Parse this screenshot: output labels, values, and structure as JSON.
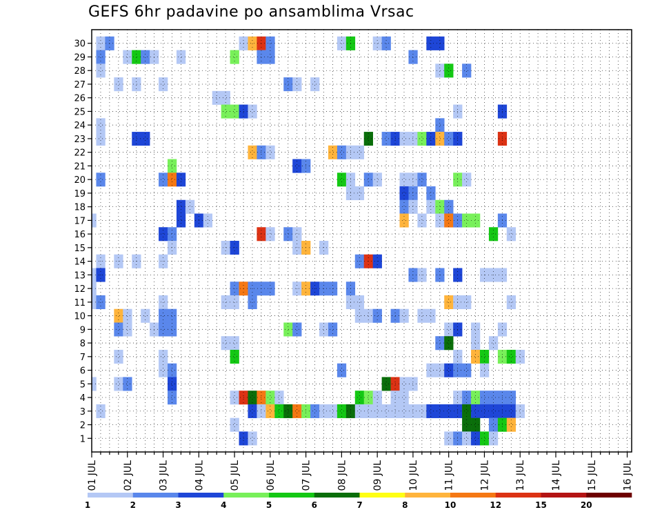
{
  "chart_data": {
    "type": "heatmap",
    "title": "GEFS 6hr padavine po ansamblima Vrsac",
    "x_labels": [
      "01 JUL",
      "02 JUL",
      "03 JUL",
      "04 JUL",
      "05 JUL",
      "06 JUL",
      "07 JUL",
      "08 JUL",
      "09 JUL",
      "10 JUL",
      "11 JUL",
      "12 JUL",
      "13 JUL",
      "14 JUL",
      "15 JUL",
      "16 JUL"
    ],
    "x_unit": "6-hourly forecast step (4 per day)",
    "y_labels": [
      1,
      2,
      3,
      4,
      5,
      6,
      7,
      8,
      9,
      10,
      11,
      12,
      13,
      14,
      15,
      16,
      17,
      18,
      19,
      20,
      21,
      22,
      23,
      24,
      25,
      26,
      27,
      28,
      29,
      30
    ],
    "y_unit": "ensemble member",
    "grid": true,
    "legend_position": "bottom",
    "legend": {
      "levels": [
        1,
        2,
        3,
        4,
        5,
        6,
        7,
        8,
        10,
        12,
        15,
        20
      ],
      "colors": [
        "#b4c8f5",
        "#5a87eb",
        "#1e46d7",
        "#78f05a",
        "#14c814",
        "#0a6e0a",
        "#ffff14",
        "#ffb43c",
        "#f57814",
        "#dc3214",
        "#b41414",
        "#6e0000"
      ]
    },
    "cells": [
      [
        1,
        30,
        1
      ],
      [
        2,
        30,
        2
      ],
      [
        17,
        30,
        1
      ],
      [
        18,
        30,
        9
      ],
      [
        19,
        30,
        12
      ],
      [
        20,
        30,
        2
      ],
      [
        28,
        30,
        1
      ],
      [
        29,
        30,
        5
      ],
      [
        32,
        30,
        1
      ],
      [
        33,
        30,
        2
      ],
      [
        38,
        30,
        3
      ],
      [
        39,
        30,
        3
      ],
      [
        1,
        29,
        2
      ],
      [
        4,
        29,
        1
      ],
      [
        5,
        29,
        5
      ],
      [
        6,
        29,
        2
      ],
      [
        7,
        29,
        1
      ],
      [
        10,
        29,
        1
      ],
      [
        16,
        29,
        4
      ],
      [
        19,
        29,
        2
      ],
      [
        20,
        29,
        2
      ],
      [
        36,
        29,
        2
      ],
      [
        1,
        28,
        1
      ],
      [
        39,
        28,
        1
      ],
      [
        40,
        28,
        5
      ],
      [
        42,
        28,
        2
      ],
      [
        3,
        27,
        1
      ],
      [
        5,
        27,
        1
      ],
      [
        8,
        27,
        1
      ],
      [
        22,
        27,
        2
      ],
      [
        23,
        27,
        1
      ],
      [
        25,
        27,
        1
      ],
      [
        14,
        26,
        1
      ],
      [
        15,
        26,
        1
      ],
      [
        15,
        25,
        4
      ],
      [
        16,
        25,
        4
      ],
      [
        17,
        25,
        3
      ],
      [
        18,
        25,
        1
      ],
      [
        41,
        25,
        1
      ],
      [
        46,
        25,
        3
      ],
      [
        1,
        24,
        1
      ],
      [
        39,
        24,
        2
      ],
      [
        1,
        23,
        1
      ],
      [
        5,
        23,
        3
      ],
      [
        6,
        23,
        3
      ],
      [
        31,
        23,
        6
      ],
      [
        33,
        23,
        2
      ],
      [
        34,
        23,
        3
      ],
      [
        35,
        23,
        1
      ],
      [
        36,
        23,
        1
      ],
      [
        37,
        23,
        4
      ],
      [
        38,
        23,
        3
      ],
      [
        39,
        23,
        8
      ],
      [
        40,
        23,
        2
      ],
      [
        41,
        23,
        3
      ],
      [
        46,
        23,
        12
      ],
      [
        18,
        22,
        8
      ],
      [
        19,
        22,
        2
      ],
      [
        20,
        22,
        1
      ],
      [
        27,
        22,
        9
      ],
      [
        28,
        22,
        2
      ],
      [
        29,
        22,
        1
      ],
      [
        30,
        22,
        1
      ],
      [
        9,
        21,
        4
      ],
      [
        23,
        21,
        3
      ],
      [
        24,
        21,
        2
      ],
      [
        1,
        20,
        2
      ],
      [
        8,
        20,
        2
      ],
      [
        9,
        20,
        10
      ],
      [
        10,
        20,
        3
      ],
      [
        28,
        20,
        5
      ],
      [
        29,
        20,
        1
      ],
      [
        31,
        20,
        2
      ],
      [
        32,
        20,
        1
      ],
      [
        35,
        20,
        1
      ],
      [
        36,
        20,
        1
      ],
      [
        37,
        20,
        2
      ],
      [
        41,
        20,
        4
      ],
      [
        42,
        20,
        1
      ],
      [
        29,
        19,
        1
      ],
      [
        30,
        19,
        1
      ],
      [
        35,
        19,
        3
      ],
      [
        36,
        19,
        2
      ],
      [
        38,
        19,
        2
      ],
      [
        10,
        18,
        3
      ],
      [
        11,
        18,
        1
      ],
      [
        35,
        18,
        2
      ],
      [
        36,
        18,
        1
      ],
      [
        38,
        18,
        1
      ],
      [
        39,
        18,
        4
      ],
      [
        40,
        18,
        2
      ],
      [
        0,
        17,
        1
      ],
      [
        10,
        17,
        3
      ],
      [
        12,
        17,
        3
      ],
      [
        13,
        17,
        1
      ],
      [
        35,
        17,
        8
      ],
      [
        37,
        17,
        1
      ],
      [
        39,
        17,
        1
      ],
      [
        40,
        17,
        11
      ],
      [
        41,
        17,
        2
      ],
      [
        42,
        17,
        4
      ],
      [
        43,
        17,
        4
      ],
      [
        46,
        17,
        2
      ],
      [
        8,
        16,
        3
      ],
      [
        9,
        16,
        2
      ],
      [
        19,
        16,
        12
      ],
      [
        20,
        16,
        1
      ],
      [
        22,
        16,
        2
      ],
      [
        23,
        16,
        1
      ],
      [
        45,
        16,
        5
      ],
      [
        47,
        16,
        1
      ],
      [
        9,
        15,
        1
      ],
      [
        15,
        15,
        1
      ],
      [
        16,
        15,
        3
      ],
      [
        23,
        15,
        1
      ],
      [
        24,
        15,
        8
      ],
      [
        26,
        15,
        1
      ],
      [
        1,
        14,
        1
      ],
      [
        3,
        14,
        1
      ],
      [
        5,
        14,
        1
      ],
      [
        8,
        14,
        1
      ],
      [
        30,
        14,
        2
      ],
      [
        31,
        14,
        12
      ],
      [
        32,
        14,
        3
      ],
      [
        0,
        13,
        1
      ],
      [
        1,
        13,
        3
      ],
      [
        36,
        13,
        2
      ],
      [
        37,
        13,
        1
      ],
      [
        39,
        13,
        2
      ],
      [
        41,
        13,
        3
      ],
      [
        44,
        13,
        1
      ],
      [
        45,
        13,
        1
      ],
      [
        46,
        13,
        1
      ],
      [
        0,
        12,
        1
      ],
      [
        16,
        12,
        2
      ],
      [
        17,
        12,
        10
      ],
      [
        18,
        12,
        2
      ],
      [
        19,
        12,
        2
      ],
      [
        20,
        12,
        2
      ],
      [
        23,
        12,
        1
      ],
      [
        24,
        12,
        9
      ],
      [
        25,
        12,
        3
      ],
      [
        26,
        12,
        2
      ],
      [
        27,
        12,
        2
      ],
      [
        29,
        12,
        2
      ],
      [
        0,
        11,
        1
      ],
      [
        1,
        11,
        2
      ],
      [
        8,
        11,
        1
      ],
      [
        15,
        11,
        1
      ],
      [
        16,
        11,
        1
      ],
      [
        18,
        11,
        2
      ],
      [
        29,
        11,
        1
      ],
      [
        30,
        11,
        1
      ],
      [
        40,
        11,
        9
      ],
      [
        41,
        11,
        1
      ],
      [
        42,
        11,
        1
      ],
      [
        47,
        11,
        1
      ],
      [
        3,
        10,
        9
      ],
      [
        4,
        10,
        1
      ],
      [
        6,
        10,
        1
      ],
      [
        8,
        10,
        2
      ],
      [
        9,
        10,
        2
      ],
      [
        30,
        10,
        1
      ],
      [
        31,
        10,
        1
      ],
      [
        32,
        10,
        2
      ],
      [
        34,
        10,
        2
      ],
      [
        35,
        10,
        1
      ],
      [
        37,
        10,
        1
      ],
      [
        38,
        10,
        1
      ],
      [
        3,
        9,
        2
      ],
      [
        4,
        9,
        1
      ],
      [
        7,
        9,
        1
      ],
      [
        8,
        9,
        2
      ],
      [
        9,
        9,
        2
      ],
      [
        22,
        9,
        4
      ],
      [
        23,
        9,
        2
      ],
      [
        26,
        9,
        1
      ],
      [
        27,
        9,
        2
      ],
      [
        40,
        9,
        1
      ],
      [
        41,
        9,
        3
      ],
      [
        43,
        9,
        1
      ],
      [
        46,
        9,
        1
      ],
      [
        15,
        8,
        1
      ],
      [
        16,
        8,
        1
      ],
      [
        39,
        8,
        2
      ],
      [
        40,
        8,
        6
      ],
      [
        43,
        8,
        1
      ],
      [
        45,
        8,
        1
      ],
      [
        3,
        7,
        1
      ],
      [
        8,
        7,
        1
      ],
      [
        16,
        7,
        5
      ],
      [
        41,
        7,
        1
      ],
      [
        43,
        7,
        8
      ],
      [
        44,
        7,
        5
      ],
      [
        46,
        7,
        4
      ],
      [
        47,
        7,
        5
      ],
      [
        48,
        7,
        1
      ],
      [
        8,
        6,
        1
      ],
      [
        9,
        6,
        2
      ],
      [
        28,
        6,
        2
      ],
      [
        38,
        6,
        1
      ],
      [
        39,
        6,
        1
      ],
      [
        40,
        6,
        3
      ],
      [
        41,
        6,
        2
      ],
      [
        42,
        6,
        2
      ],
      [
        44,
        6,
        1
      ],
      [
        0,
        5,
        1
      ],
      [
        3,
        5,
        1
      ],
      [
        4,
        5,
        2
      ],
      [
        9,
        5,
        3
      ],
      [
        33,
        5,
        6
      ],
      [
        34,
        5,
        12
      ],
      [
        35,
        5,
        1
      ],
      [
        36,
        5,
        1
      ],
      [
        9,
        4,
        2
      ],
      [
        16,
        4,
        1
      ],
      [
        17,
        4,
        12
      ],
      [
        18,
        4,
        6
      ],
      [
        19,
        4,
        10
      ],
      [
        20,
        4,
        4
      ],
      [
        21,
        4,
        1
      ],
      [
        30,
        4,
        5
      ],
      [
        31,
        4,
        4
      ],
      [
        32,
        4,
        1
      ],
      [
        34,
        4,
        1
      ],
      [
        35,
        4,
        1
      ],
      [
        41,
        4,
        1
      ],
      [
        42,
        4,
        2
      ],
      [
        43,
        4,
        4
      ],
      [
        44,
        4,
        2
      ],
      [
        45,
        4,
        2
      ],
      [
        46,
        4,
        2
      ],
      [
        47,
        4,
        2
      ],
      [
        1,
        3,
        1
      ],
      [
        18,
        3,
        3
      ],
      [
        19,
        3,
        1
      ],
      [
        20,
        3,
        8
      ],
      [
        21,
        3,
        5
      ],
      [
        22,
        3,
        6
      ],
      [
        23,
        3,
        11
      ],
      [
        24,
        3,
        4
      ],
      [
        25,
        3,
        2
      ],
      [
        26,
        3,
        1
      ],
      [
        27,
        3,
        1
      ],
      [
        28,
        3,
        5
      ],
      [
        29,
        3,
        6
      ],
      [
        30,
        3,
        1
      ],
      [
        31,
        3,
        1
      ],
      [
        32,
        3,
        1
      ],
      [
        33,
        3,
        1
      ],
      [
        34,
        3,
        1
      ],
      [
        35,
        3,
        1
      ],
      [
        36,
        3,
        1
      ],
      [
        37,
        3,
        1
      ],
      [
        38,
        3,
        3
      ],
      [
        39,
        3,
        3
      ],
      [
        40,
        3,
        3
      ],
      [
        41,
        3,
        3
      ],
      [
        42,
        3,
        6
      ],
      [
        43,
        3,
        3
      ],
      [
        44,
        3,
        3
      ],
      [
        45,
        3,
        3
      ],
      [
        46,
        3,
        3
      ],
      [
        47,
        3,
        3
      ],
      [
        48,
        3,
        1
      ],
      [
        16,
        2,
        1
      ],
      [
        42,
        2,
        6
      ],
      [
        43,
        2,
        6
      ],
      [
        45,
        2,
        2
      ],
      [
        46,
        2,
        5
      ],
      [
        47,
        2,
        8
      ],
      [
        17,
        1,
        3
      ],
      [
        18,
        1,
        1
      ],
      [
        40,
        1,
        1
      ],
      [
        41,
        1,
        2
      ],
      [
        42,
        1,
        1
      ],
      [
        43,
        1,
        3
      ],
      [
        44,
        1,
        5
      ],
      [
        45,
        1,
        1
      ]
    ]
  }
}
